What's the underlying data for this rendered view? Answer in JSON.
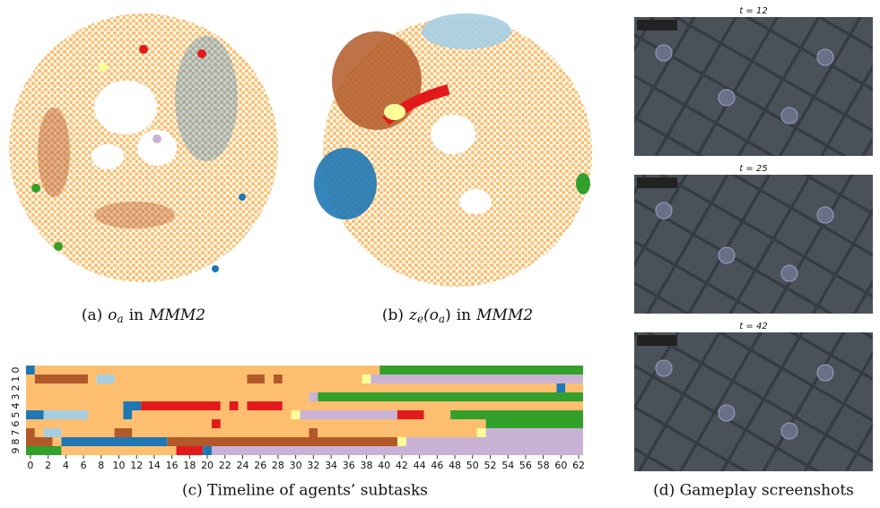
{
  "captions": {
    "a": {
      "label": "(a)",
      "var": "o",
      "sub": "a",
      "mid": "in",
      "env": "MMM2"
    },
    "b": {
      "label": "(b)",
      "var": "z",
      "sub": "e",
      "open": "(o",
      "sub2": "a",
      "close": ")",
      "mid": "in",
      "env": "MMM2"
    },
    "c": "(c)  Timeline of agents’ subtasks",
    "d": "(d)  Gameplay screenshots"
  },
  "screenshots": [
    {
      "title": "t = 12"
    },
    {
      "title": "t = 25"
    },
    {
      "title": "t = 42"
    }
  ],
  "timeline": {
    "xlim": [
      -0.5,
      62.5
    ],
    "xticks": [
      0,
      2,
      4,
      6,
      8,
      10,
      12,
      14,
      16,
      18,
      20,
      22,
      24,
      26,
      28,
      30,
      32,
      34,
      36,
      38,
      40,
      42,
      44,
      46,
      48,
      50,
      52,
      54,
      56,
      58,
      60,
      62
    ],
    "agents": [
      0,
      1,
      2,
      3,
      4,
      5,
      6,
      7,
      8,
      9
    ],
    "rows": [
      [
        {
          "color": "#1f78b4",
          "start": 0,
          "end": 0
        },
        {
          "color": "#fdbf6f",
          "start": 1,
          "end": 39
        },
        {
          "color": "#33a02c",
          "start": 40,
          "end": 62
        }
      ],
      [
        {
          "color": "#fdbf6f",
          "start": 0,
          "end": 0
        },
        {
          "color": "#b15928",
          "start": 1,
          "end": 6
        },
        {
          "color": "#fdbf6f",
          "start": 7,
          "end": 7
        },
        {
          "color": "#a6cee3",
          "start": 8,
          "end": 9
        },
        {
          "color": "#fdbf6f",
          "start": 10,
          "end": 24
        },
        {
          "color": "#b15928",
          "start": 25,
          "end": 26
        },
        {
          "color": "#fdbf6f",
          "start": 27,
          "end": 27
        },
        {
          "color": "#b15928",
          "start": 28,
          "end": 28
        },
        {
          "color": "#fdbf6f",
          "start": 29,
          "end": 37
        },
        {
          "color": "#ffff99",
          "start": 38,
          "end": 38
        },
        {
          "color": "#cab2d6",
          "start": 39,
          "end": 62
        }
      ],
      [
        {
          "color": "#fdbf6f",
          "start": 0,
          "end": 59
        },
        {
          "color": "#1f78b4",
          "start": 60,
          "end": 60
        },
        {
          "color": "#fdbf6f",
          "start": 61,
          "end": 62
        }
      ],
      [
        {
          "color": "#fdbf6f",
          "start": 0,
          "end": 31
        },
        {
          "color": "#cab2d6",
          "start": 32,
          "end": 32
        },
        {
          "color": "#33a02c",
          "start": 33,
          "end": 62
        }
      ],
      [
        {
          "color": "#fdbf6f",
          "start": 0,
          "end": 10
        },
        {
          "color": "#1f78b4",
          "start": 11,
          "end": 12
        },
        {
          "color": "#e31a1c",
          "start": 13,
          "end": 21
        },
        {
          "color": "#fdbf6f",
          "start": 22,
          "end": 22
        },
        {
          "color": "#e31a1c",
          "start": 23,
          "end": 23
        },
        {
          "color": "#fdbf6f",
          "start": 24,
          "end": 24
        },
        {
          "color": "#e31a1c",
          "start": 25,
          "end": 28
        },
        {
          "color": "#fdbf6f",
          "start": 29,
          "end": 62
        }
      ],
      [
        {
          "color": "#1f78b4",
          "start": 0,
          "end": 1
        },
        {
          "color": "#a6cee3",
          "start": 2,
          "end": 6
        },
        {
          "color": "#fdbf6f",
          "start": 7,
          "end": 10
        },
        {
          "color": "#1f78b4",
          "start": 11,
          "end": 11
        },
        {
          "color": "#fdbf6f",
          "start": 12,
          "end": 29
        },
        {
          "color": "#ffff99",
          "start": 30,
          "end": 30
        },
        {
          "color": "#cab2d6",
          "start": 31,
          "end": 41
        },
        {
          "color": "#e31a1c",
          "start": 42,
          "end": 44
        },
        {
          "color": "#fdbf6f",
          "start": 45,
          "end": 47
        },
        {
          "color": "#33a02c",
          "start": 48,
          "end": 62
        }
      ],
      [
        {
          "color": "#fdbf6f",
          "start": 0,
          "end": 20
        },
        {
          "color": "#e31a1c",
          "start": 21,
          "end": 21
        },
        {
          "color": "#fdbf6f",
          "start": 22,
          "end": 51
        },
        {
          "color": "#33a02c",
          "start": 52,
          "end": 62
        }
      ],
      [
        {
          "color": "#b15928",
          "start": 0,
          "end": 0
        },
        {
          "color": "#fdbf6f",
          "start": 1,
          "end": 1
        },
        {
          "color": "#a6cee3",
          "start": 2,
          "end": 3
        },
        {
          "color": "#fdbf6f",
          "start": 4,
          "end": 9
        },
        {
          "color": "#b15928",
          "start": 10,
          "end": 11
        },
        {
          "color": "#fdbf6f",
          "start": 12,
          "end": 31
        },
        {
          "color": "#b15928",
          "start": 32,
          "end": 32
        },
        {
          "color": "#fdbf6f",
          "start": 33,
          "end": 50
        },
        {
          "color": "#ffff99",
          "start": 51,
          "end": 51
        },
        {
          "color": "#cab2d6",
          "start": 52,
          "end": 62
        }
      ],
      [
        {
          "color": "#b15928",
          "start": 0,
          "end": 2
        },
        {
          "color": "#fdbf6f",
          "start": 3,
          "end": 3
        },
        {
          "color": "#1f78b4",
          "start": 4,
          "end": 15
        },
        {
          "color": "#b15928",
          "start": 16,
          "end": 41
        },
        {
          "color": "#ffff99",
          "start": 42,
          "end": 42
        },
        {
          "color": "#cab2d6",
          "start": 43,
          "end": 62
        }
      ],
      [
        {
          "color": "#33a02c",
          "start": 0,
          "end": 3
        },
        {
          "color": "#fdbf6f",
          "start": 4,
          "end": 16
        },
        {
          "color": "#e31a1c",
          "start": 17,
          "end": 19
        },
        {
          "color": "#1f78b4",
          "start": 20,
          "end": 20
        },
        {
          "color": "#cab2d6",
          "start": 21,
          "end": 62
        }
      ]
    ]
  }
}
